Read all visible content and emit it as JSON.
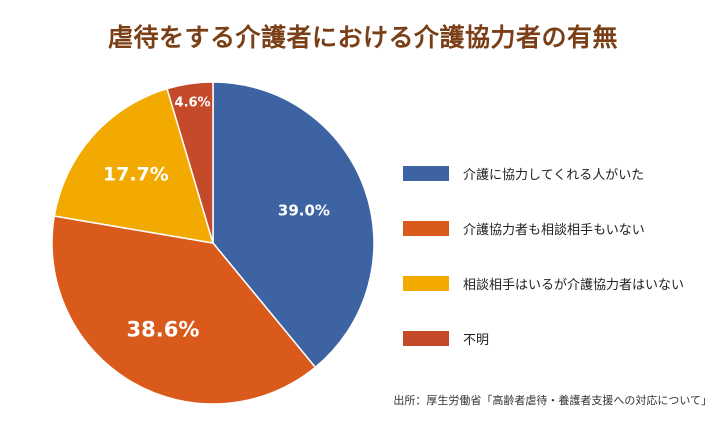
{
  "chart_data": {
    "type": "pie",
    "title": "虐待をする介護者における介護協力者の有無",
    "start_angle_deg": 0,
    "direction": "clockwise",
    "slices": [
      {
        "label": "介護に協力してくれる人がいた",
        "value": 39.0,
        "display": "39.0%",
        "color": "#3d63a3",
        "label_color": "#ffffff"
      },
      {
        "label": "介護協力者も相談相手もいない",
        "value": 38.6,
        "display": "38.6%",
        "color": "#d95a1a",
        "label_color": "#ffffff"
      },
      {
        "label": "相談相手はいるが介護協力者はいない",
        "value": 17.7,
        "display": "17.7%",
        "color": "#f2a900",
        "label_color": "#ffffff"
      },
      {
        "label": "不明",
        "value": 4.6,
        "display": "4.6%",
        "color": "#c44a2a",
        "label_color": "#ffffff"
      }
    ],
    "legend_position": "right",
    "source": "出所：厚生労働省「高齢者虐待・養護者支援への対応について」"
  }
}
